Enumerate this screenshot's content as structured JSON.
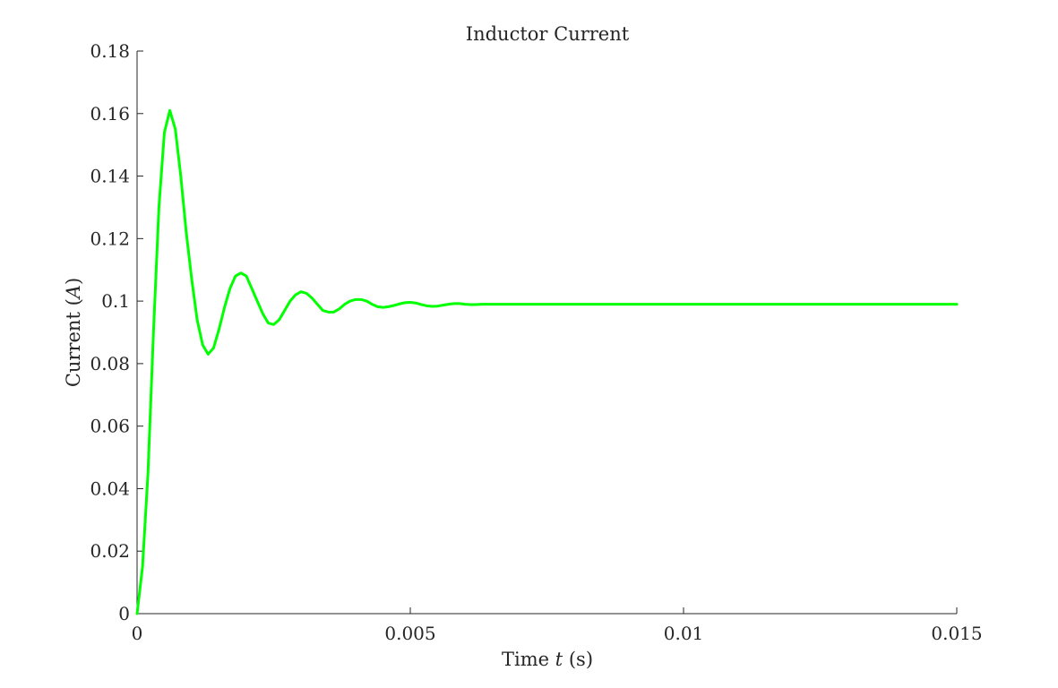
{
  "chart_data": {
    "type": "line",
    "title": "Inductor Current",
    "xlabel": {
      "pre": "Time ",
      "var": "t",
      "post": " (s)"
    },
    "ylabel": {
      "pre": "Current ",
      "open": "(",
      "var": "A",
      "close": ")"
    },
    "xlim": [
      0,
      0.015
    ],
    "ylim": [
      0,
      0.18
    ],
    "xticks": [
      0,
      0.005,
      0.01,
      0.015
    ],
    "xtick_labels": [
      "0",
      "0.005",
      "0.01",
      "0.015"
    ],
    "yticks": [
      0,
      0.02,
      0.04,
      0.06,
      0.08,
      0.1,
      0.12,
      0.14,
      0.16,
      0.18
    ],
    "ytick_labels": [
      "0",
      "0.02",
      "0.04",
      "0.06",
      "0.08",
      "0.1",
      "0.12",
      "0.14",
      "0.16",
      "0.18"
    ],
    "grid": false,
    "series": [
      {
        "color": "#00ff00",
        "x": [
          0,
          0.0001,
          0.0002,
          0.0003,
          0.0004,
          0.0005,
          0.0006,
          0.0007,
          0.0008,
          0.0009,
          0.001,
          0.0011,
          0.0012,
          0.0013,
          0.0014,
          0.0015,
          0.0016,
          0.0017,
          0.0018,
          0.0019,
          0.002,
          0.0021,
          0.0022,
          0.0023,
          0.0024,
          0.0025,
          0.0026,
          0.0027,
          0.0028,
          0.0029,
          0.003,
          0.0031,
          0.0032,
          0.0033,
          0.0034,
          0.0035,
          0.0036,
          0.0037,
          0.0038,
          0.0039,
          0.004,
          0.0041,
          0.0042,
          0.0043,
          0.0044,
          0.0045,
          0.0046,
          0.0047,
          0.0048,
          0.0049,
          0.005,
          0.0051,
          0.0052,
          0.0053,
          0.0054,
          0.0055,
          0.0056,
          0.0057,
          0.0058,
          0.0059,
          0.006,
          0.0061,
          0.0062,
          0.0063,
          0.0064,
          0.0065,
          0.0066,
          0.0067,
          0.0068,
          0.0069,
          0.007,
          0.0072,
          0.0074,
          0.0076,
          0.0078,
          0.008,
          0.0085,
          0.009,
          0.0095,
          0.01,
          0.011,
          0.012,
          0.013,
          0.014,
          0.015
        ],
        "y": [
          0,
          0.015,
          0.045,
          0.09,
          0.13,
          0.154,
          0.161,
          0.155,
          0.14,
          0.122,
          0.107,
          0.094,
          0.086,
          0.083,
          0.085,
          0.091,
          0.098,
          0.104,
          0.108,
          0.109,
          0.108,
          0.104,
          0.1,
          0.096,
          0.093,
          0.0925,
          0.094,
          0.097,
          0.1,
          0.102,
          0.103,
          0.1025,
          0.101,
          0.099,
          0.097,
          0.0965,
          0.0965,
          0.0975,
          0.099,
          0.1,
          0.1005,
          0.1005,
          0.1,
          0.099,
          0.0982,
          0.098,
          0.0982,
          0.0986,
          0.0991,
          0.0995,
          0.0996,
          0.0994,
          0.0989,
          0.0985,
          0.0983,
          0.0984,
          0.0987,
          0.099,
          0.0992,
          0.0992,
          0.099,
          0.0989,
          0.0989,
          0.099,
          0.099,
          0.099,
          0.099,
          0.099,
          0.099,
          0.099,
          0.099,
          0.099,
          0.099,
          0.099,
          0.099,
          0.099,
          0.099,
          0.099,
          0.099,
          0.099,
          0.099,
          0.099,
          0.099,
          0.099,
          0.099
        ]
      }
    ]
  }
}
